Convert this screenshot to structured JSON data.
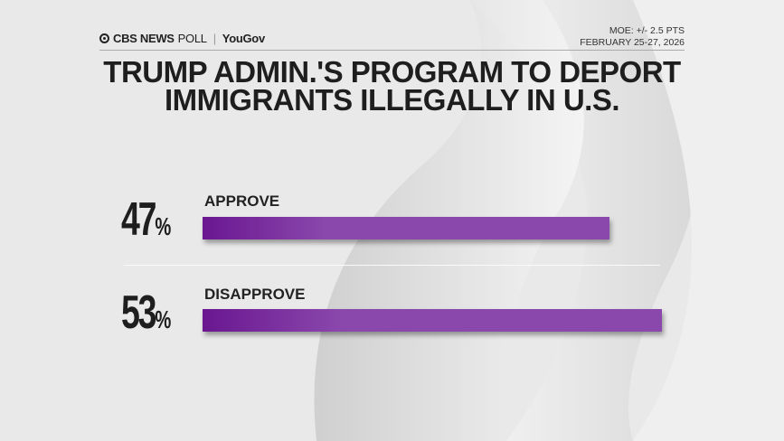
{
  "header": {
    "brand": "CBS NEWS",
    "brand_suffix": "POLL",
    "partner": "YouGov",
    "moe": "MOE: +/- 2.5 PTS",
    "dates": "FEBRUARY 25-27, 2026"
  },
  "chart_data": {
    "type": "bar",
    "orientation": "horizontal",
    "title_line1": "TRUMP ADMIN.'S PROGRAM TO DEPORT",
    "title_line2": "IMMIGRANTS ILLEGALLY IN U.S.",
    "categories": [
      "APPROVE",
      "DISAPPROVE"
    ],
    "values": [
      47,
      53
    ],
    "value_labels": [
      "47",
      "53"
    ],
    "unit": "%",
    "bar_color": "#8a47ac",
    "bar_color_dark": "#6a1790"
  }
}
